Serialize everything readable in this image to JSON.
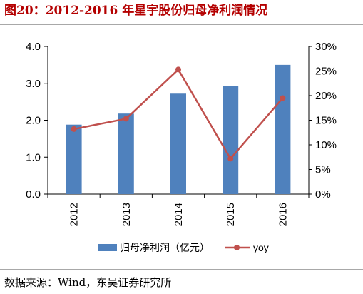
{
  "header": {
    "title": "图20：2012-2016 年星宇股份归母净利润情况"
  },
  "footer": {
    "source": "数据来源：Wind，东吴证券研究所"
  },
  "colors": {
    "title": "#b40000",
    "bar": "#4f81bd",
    "line": "#c0504d"
  },
  "chart_data": {
    "type": "bar+line",
    "categories": [
      "2012",
      "2013",
      "2014",
      "2015",
      "2016"
    ],
    "series": [
      {
        "name": "归母净利润（亿元）",
        "type": "bar",
        "axis": "left",
        "values": [
          1.88,
          2.18,
          2.72,
          2.93,
          3.5
        ]
      },
      {
        "name": "yoy",
        "type": "line",
        "axis": "right",
        "values": [
          0.132,
          0.153,
          0.253,
          0.072,
          0.195
        ]
      }
    ],
    "y_left": {
      "min": 0,
      "max": 4.0,
      "ticks": [
        "0.0",
        "1.0",
        "2.0",
        "3.0",
        "4.0"
      ]
    },
    "y_right": {
      "min": 0,
      "max": 0.3,
      "ticks": [
        "0%",
        "5%",
        "10%",
        "15%",
        "20%",
        "25%",
        "30%"
      ]
    },
    "legend_position": "bottom",
    "grid": false
  }
}
